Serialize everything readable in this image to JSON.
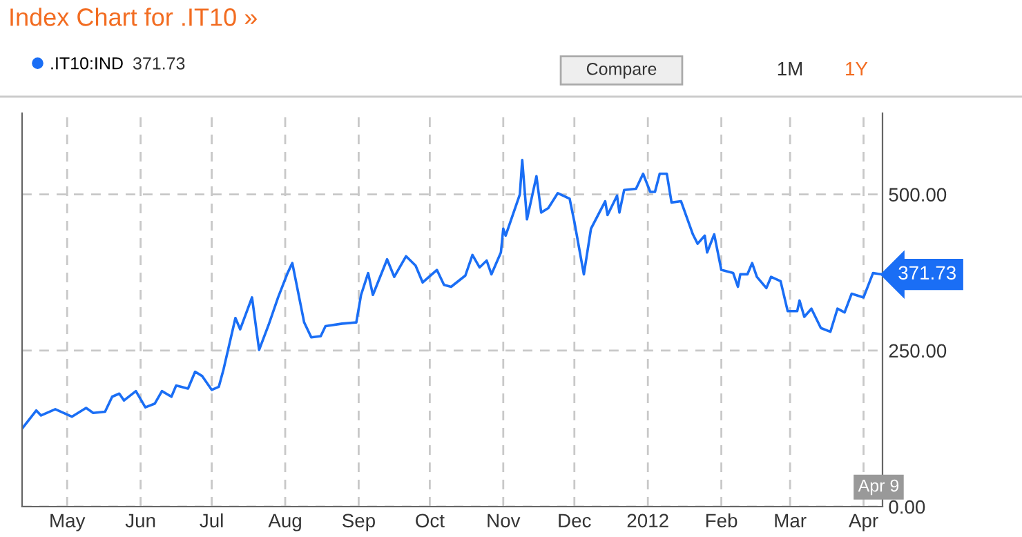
{
  "chart_data": {
    "type": "line",
    "title": "Index Chart for .IT10 »",
    "x": [
      "2011-04-12",
      "2011-04-18",
      "2011-04-20",
      "2011-04-26",
      "2011-05-03",
      "2011-05-09",
      "2011-05-12",
      "2011-05-17",
      "2011-05-20",
      "2011-05-23",
      "2011-05-25",
      "2011-05-30",
      "2011-06-03",
      "2011-06-07",
      "2011-06-10",
      "2011-06-14",
      "2011-06-16",
      "2011-06-21",
      "2011-06-24",
      "2011-06-27",
      "2011-07-01",
      "2011-07-04",
      "2011-07-06",
      "2011-07-11",
      "2011-07-13",
      "2011-07-18",
      "2011-07-21",
      "2011-07-25",
      "2011-07-29",
      "2011-08-02",
      "2011-08-04",
      "2011-08-09",
      "2011-08-12",
      "2011-08-16",
      "2011-08-18",
      "2011-08-25",
      "2011-08-31",
      "2011-09-02",
      "2011-09-05",
      "2011-09-07",
      "2011-09-13",
      "2011-09-16",
      "2011-09-21",
      "2011-09-25",
      "2011-09-28",
      "2011-10-04",
      "2011-10-07",
      "2011-10-10",
      "2011-10-16",
      "2011-10-19",
      "2011-10-22",
      "2011-10-25",
      "2011-10-27",
      "2011-10-31",
      "2011-11-01",
      "2011-11-02",
      "2011-11-08",
      "2011-11-09",
      "2011-11-11",
      "2011-11-15",
      "2011-11-17",
      "2011-11-20",
      "2011-11-24",
      "2011-11-29",
      "2011-12-01",
      "2011-12-05",
      "2011-12-08",
      "2011-12-14",
      "2011-12-15",
      "2011-12-19",
      "2011-12-20",
      "2011-12-22",
      "2011-12-27",
      "2011-12-30",
      "2012-01-02",
      "2012-01-04",
      "2012-01-06",
      "2012-01-09",
      "2012-01-11",
      "2012-01-15",
      "2012-01-20",
      "2012-01-22",
      "2012-01-25",
      "2012-01-26",
      "2012-01-29",
      "2012-02-01",
      "2012-02-06",
      "2012-02-08",
      "2012-02-09",
      "2012-02-12",
      "2012-02-14",
      "2012-02-16",
      "2012-02-20",
      "2012-02-22",
      "2012-02-26",
      "2012-02-29",
      "2012-03-04",
      "2012-03-05",
      "2012-03-07",
      "2012-03-10",
      "2012-03-14",
      "2012-03-18",
      "2012-03-21",
      "2012-03-24",
      "2012-03-27",
      "2012-04-01",
      "2012-04-05",
      "2012-04-09"
    ],
    "series": [
      {
        "name": ".IT10:IND",
        "color": "#1a6ef5",
        "values": [
          125,
          154,
          146,
          156,
          144,
          158,
          150,
          152,
          176,
          181,
          170,
          185,
          159,
          165,
          185,
          176,
          194,
          189,
          216,
          209,
          187,
          192,
          220,
          302,
          284,
          335,
          251,
          291,
          335,
          374,
          390,
          295,
          271,
          273,
          289,
          293,
          295,
          339,
          374,
          339,
          396,
          368,
          401,
          386,
          359,
          379,
          355,
          352,
          370,
          403,
          383,
          394,
          372,
          407,
          445,
          434,
          500,
          555,
          460,
          529,
          471,
          478,
          502,
          493,
          456,
          372,
          445,
          489,
          467,
          498,
          471,
          507,
          509,
          533,
          504,
          504,
          533,
          533,
          487,
          489,
          436,
          421,
          434,
          407,
          436,
          379,
          374,
          352,
          372,
          372,
          390,
          368,
          350,
          368,
          361,
          313,
          313,
          330,
          304,
          317,
          286,
          280,
          317,
          311,
          341,
          335,
          374,
          371.73
        ]
      }
    ],
    "xlim": [
      "2011-04-12",
      "2012-04-09"
    ],
    "xticks": [
      {
        "value": "2011-05-01",
        "label": "May"
      },
      {
        "value": "2011-06-01",
        "label": "Jun"
      },
      {
        "value": "2011-07-01",
        "label": "Jul"
      },
      {
        "value": "2011-08-01",
        "label": "Aug"
      },
      {
        "value": "2011-09-01",
        "label": "Sep"
      },
      {
        "value": "2011-10-01",
        "label": "Oct"
      },
      {
        "value": "2011-11-01",
        "label": "Nov"
      },
      {
        "value": "2011-12-01",
        "label": "Dec"
      },
      {
        "value": "2012-01-01",
        "label": "2012"
      },
      {
        "value": "2012-02-01",
        "label": "Feb"
      },
      {
        "value": "2012-03-01",
        "label": "Mar"
      },
      {
        "value": "2012-04-01",
        "label": "Apr"
      }
    ],
    "ylim": [
      0,
      630
    ],
    "yticks": [
      {
        "value": 0,
        "label": "0.00"
      },
      {
        "value": 250,
        "label": "250.00"
      },
      {
        "value": 500,
        "label": "500.00"
      }
    ],
    "grid": true,
    "legend": "top left",
    "marker": "none",
    "line_style": "solid",
    "annotations": [
      "371.73",
      "Compare",
      "1M",
      "1Y",
      {
        "text": "371.73",
        "x": "2012-04-09",
        "y": 371.73
      },
      "Apr 9"
    ]
  }
}
